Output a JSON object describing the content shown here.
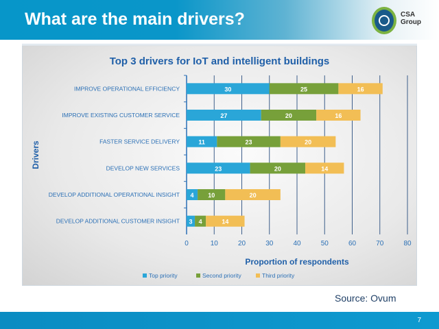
{
  "slide": {
    "title": "What are the main drivers?",
    "logo_text": "CSA Group",
    "source": "Source: Ovum",
    "page": "7"
  },
  "chart_data": {
    "type": "bar",
    "orientation": "horizontal",
    "stacked": true,
    "title": "Top 3 drivers for IoT and intelligent buildings",
    "xlabel": "Proportion of respondents",
    "ylabel": "Drivers",
    "xlim": [
      0,
      80
    ],
    "xticks": [
      0,
      10,
      20,
      30,
      40,
      50,
      60,
      70,
      80
    ],
    "grid": true,
    "legend": "bottom",
    "categories": [
      "IMPROVE OPERATIONAL EFFICIENCY",
      "IMPROVE EXISTING CUSTOMER SERVICE",
      "FASTER SERVICE DELIVERY",
      "DEVELOP NEW SERVICES",
      "DEVELOP ADDITIONAL OPERATIONAL INSIGHT",
      "DEVELOP ADDITIONAL CUSTOMER INSIGHT"
    ],
    "series": [
      {
        "name": "Top priority",
        "color": "#2aa6d8",
        "values": [
          30,
          27,
          11,
          23,
          4,
          3
        ]
      },
      {
        "name": "Second priority",
        "color": "#77a03a",
        "values": [
          25,
          20,
          23,
          20,
          10,
          4
        ]
      },
      {
        "name": "Third priority",
        "color": "#f2be55",
        "values": [
          16,
          16,
          20,
          14,
          20,
          14
        ]
      }
    ]
  }
}
